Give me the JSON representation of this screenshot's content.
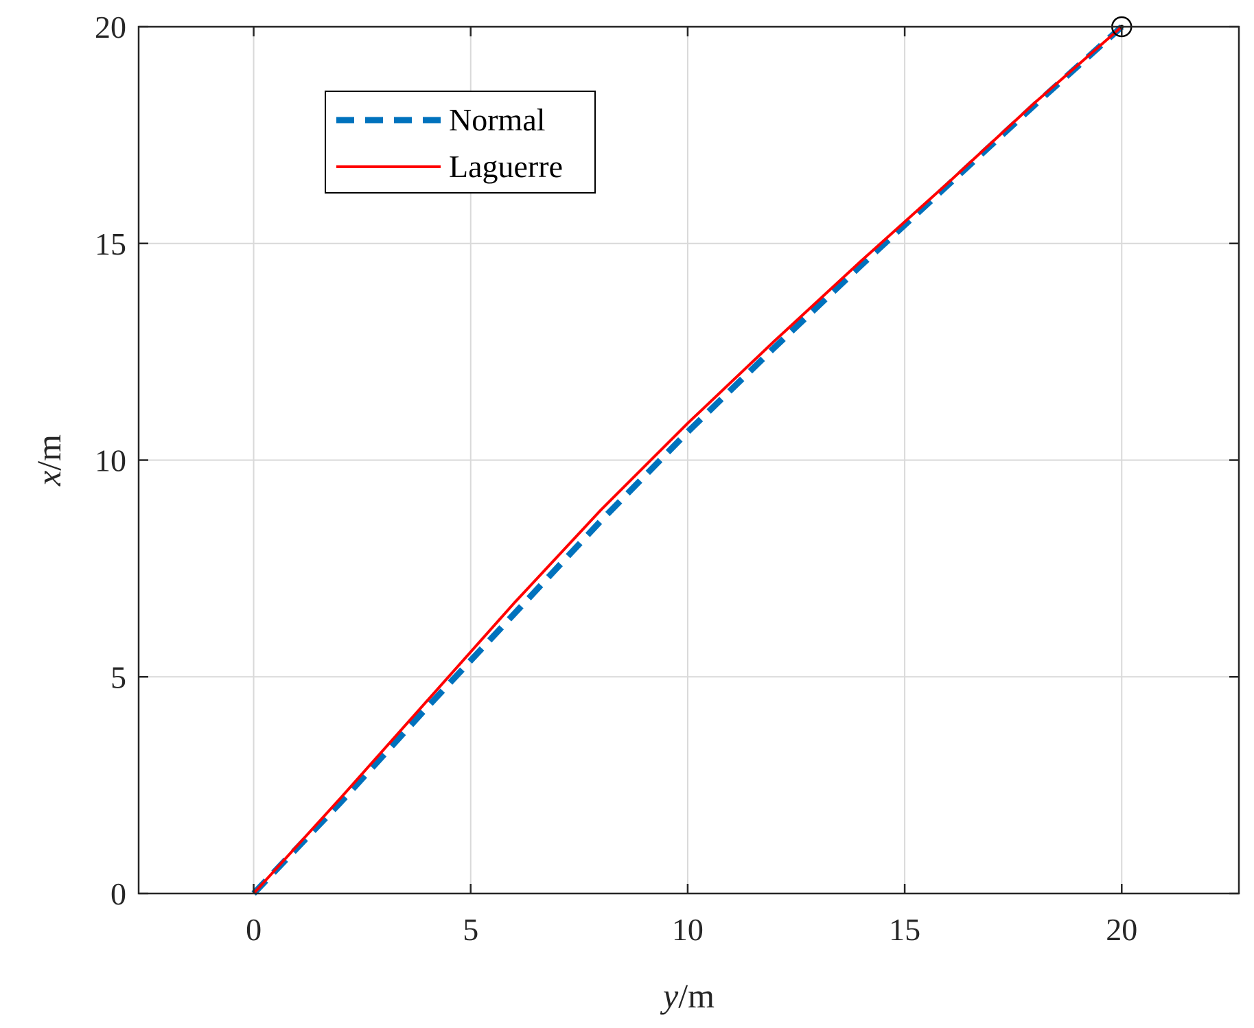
{
  "chart_data": {
    "type": "line",
    "xlabel": {
      "var": "y",
      "unit": "/m"
    },
    "ylabel": {
      "var": "x",
      "unit": "/m"
    },
    "xlim": [
      -2.65,
      22.7
    ],
    "ylim": [
      0,
      20
    ],
    "xticks": [
      0,
      5,
      10,
      15,
      20
    ],
    "yticks": [
      0,
      5,
      10,
      15,
      20
    ],
    "xtick_labels": [
      "0",
      "5",
      "10",
      "15",
      "20"
    ],
    "ytick_labels": [
      "0",
      "5",
      "10",
      "15",
      "20"
    ],
    "grid": true,
    "legend_position": "top-left",
    "series": [
      {
        "name": "Normal",
        "style": "dashed",
        "color": "#0072BD",
        "x": [
          0,
          2,
          4,
          6,
          8,
          10,
          12,
          14,
          16,
          18,
          20
        ],
        "y": [
          0,
          2.1,
          4.3,
          6.45,
          8.6,
          10.65,
          12.6,
          14.5,
          16.35,
          18.2,
          20
        ]
      },
      {
        "name": "Laguerre",
        "style": "solid",
        "color": "#FF0000",
        "x": [
          0,
          2,
          4,
          6,
          8,
          10,
          12,
          14,
          16,
          18,
          20
        ],
        "y": [
          0,
          2.2,
          4.45,
          6.7,
          8.85,
          10.85,
          12.75,
          14.6,
          16.4,
          18.25,
          20
        ]
      }
    ],
    "markers": [
      {
        "type": "target-circle",
        "x": 20,
        "y": 20,
        "color": "#000000"
      }
    ]
  }
}
